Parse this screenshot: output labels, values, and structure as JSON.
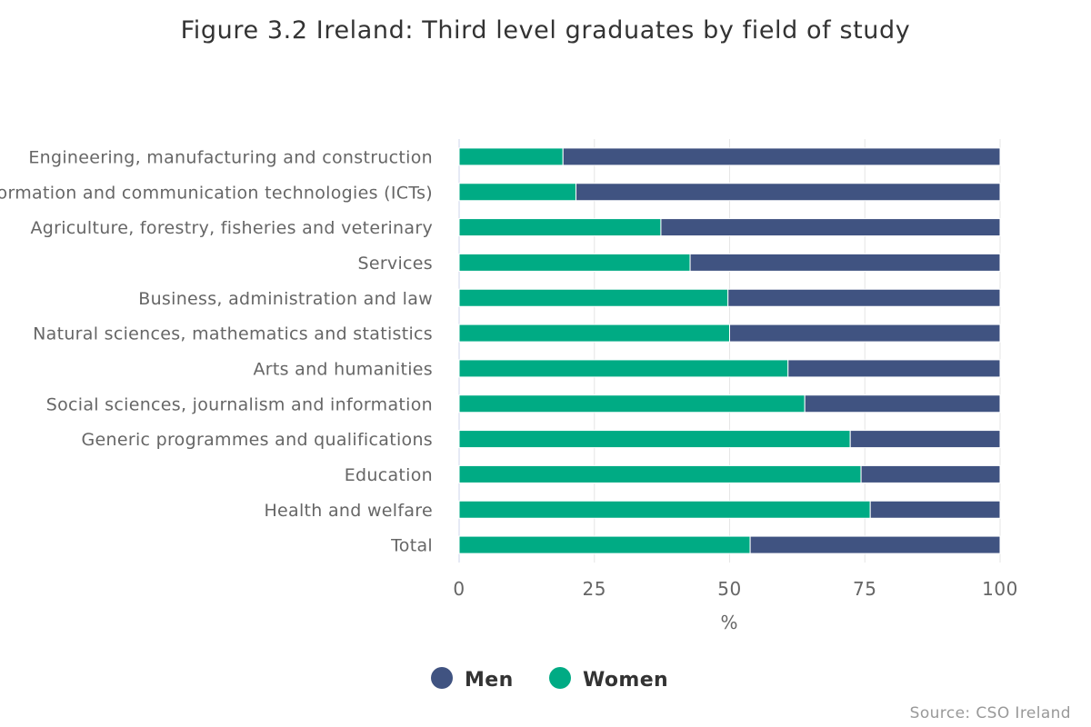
{
  "chart_data": {
    "type": "bar",
    "orientation": "horizontal",
    "stacking": "percent",
    "title": "Figure 3.2 Ireland: Third level graduates by field of study",
    "xlabel": "%",
    "xlim": [
      0,
      100
    ],
    "xticks": [
      "0",
      "25",
      "50",
      "75",
      "100"
    ],
    "grid": true,
    "legend_position": "bottom-center",
    "categories": [
      "Engineering, manufacturing and construction",
      "Information and communication technologies (ICTs)",
      "Agriculture, forestry, fisheries and veterinary",
      "Services",
      "Business, administration and law",
      "Natural sciences, mathematics and statistics",
      "Arts and humanities",
      "Social sciences, journalism and information",
      "Generic programmes and qualifications",
      "Education",
      "Health and welfare",
      "Total"
    ],
    "series": [
      {
        "name": "Women",
        "color": "#00ab84",
        "values": [
          19.2,
          21.6,
          37.3,
          42.7,
          49.7,
          50.0,
          60.8,
          63.9,
          72.3,
          74.3,
          76.0,
          53.8
        ]
      },
      {
        "name": "Men",
        "color": "#405381",
        "values": [
          80.8,
          78.4,
          62.7,
          57.3,
          50.3,
          50.0,
          39.2,
          36.1,
          27.7,
          25.7,
          24.0,
          46.2
        ]
      }
    ],
    "legend": [
      {
        "name": "Men",
        "color": "#405381"
      },
      {
        "name": "Women",
        "color": "#00ab84"
      }
    ],
    "source": "Source: CSO Ireland"
  }
}
